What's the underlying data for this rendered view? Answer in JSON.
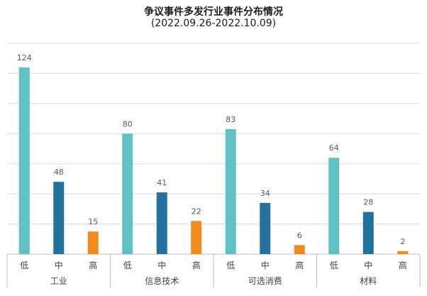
{
  "chart_data": {
    "type": "bar",
    "title": "争议事件多发行业事件分布情况",
    "subtitle": "(2022.09.26-2022.10.09)",
    "groups": [
      {
        "name": "工业",
        "subcategories": [
          "低",
          "中",
          "高"
        ],
        "values": [
          124,
          48,
          15
        ]
      },
      {
        "name": "信息技术",
        "subcategories": [
          "低",
          "中",
          "高"
        ],
        "values": [
          80,
          41,
          22
        ]
      },
      {
        "name": "可选消费",
        "subcategories": [
          "低",
          "中",
          "高"
        ],
        "values": [
          83,
          34,
          6
        ]
      },
      {
        "name": "材料",
        "subcategories": [
          "低",
          "中",
          "高"
        ],
        "values": [
          64,
          28,
          2
        ]
      }
    ],
    "ylim": [
      0,
      140
    ],
    "y_gridlines": true,
    "y_tick_labels_shown": false,
    "colors": {
      "低": "#5fc1c3",
      "中": "#21739e",
      "高": "#f28a1e"
    },
    "xlabel": "",
    "ylabel": ""
  }
}
